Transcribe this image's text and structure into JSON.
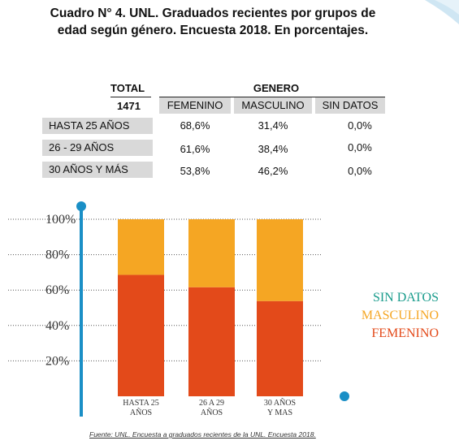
{
  "title": {
    "line1": "Cuadro N° 4. UNL. Graduados recientes por grupos de",
    "line2": "edad según género. Encuesta 2018. En porcentajes."
  },
  "table": {
    "total_label": "TOTAL",
    "group_label": "GENERO",
    "total_value": "1471",
    "columns": [
      "FEMENINO",
      "MASCULINO",
      "SIN DATOS"
    ],
    "rows": [
      {
        "label": "HASTA 25 AÑOS",
        "values": [
          "68,6%",
          "31,4%",
          "0,0%"
        ]
      },
      {
        "label": "26 - 29 AÑOS",
        "values": [
          "61,6%",
          "38,4%",
          "0,0%"
        ]
      },
      {
        "label": "30 AÑOS Y MÁS",
        "values": [
          "53,8%",
          "46,2%",
          "0,0%"
        ]
      }
    ]
  },
  "chart_data": {
    "type": "bar",
    "stacked": true,
    "categories": [
      [
        "HASTA 25",
        "AÑOS"
      ],
      [
        "26 A 29",
        "AÑOS"
      ],
      [
        "30 AÑOS",
        "Y MAS"
      ]
    ],
    "series": [
      {
        "name": "FEMENINO",
        "values": [
          68.6,
          61.6,
          53.8
        ],
        "color": "#e34a1a"
      },
      {
        "name": "MASCULINO",
        "values": [
          31.4,
          38.4,
          46.2
        ],
        "color": "#f5a623"
      },
      {
        "name": "SIN DATOS",
        "values": [
          0.0,
          0.0,
          0.0
        ],
        "color": "#1a9c8c"
      }
    ],
    "y_ticks": [
      "20%",
      "40%",
      "60%",
      "80%",
      "100%"
    ],
    "y_tick_values": [
      20,
      40,
      60,
      80,
      100
    ],
    "ylim": [
      0,
      100
    ],
    "legend_position": "right",
    "axis_color": "#1a8fc6"
  },
  "source": "Fuente: UNL. Encuesta a graduados recientes de la UNL. Encuesta 2018."
}
